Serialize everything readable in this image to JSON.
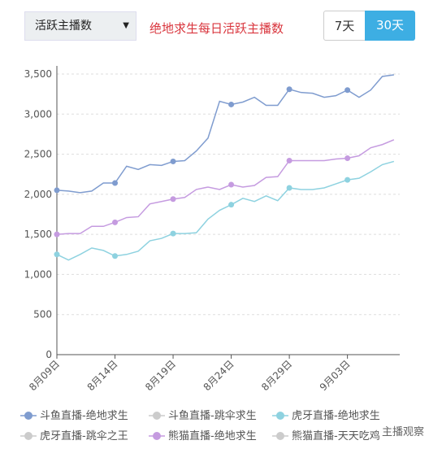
{
  "ui": {
    "select": "活跃主播数",
    "range_buttons": [
      "7天",
      "30天"
    ],
    "watermark": "主播观察"
  },
  "chart_data": {
    "type": "line",
    "title": "绝地求生每日活跃主播数",
    "categories": [
      "8月09日",
      null,
      null,
      null,
      null,
      "8月14日",
      null,
      null,
      null,
      null,
      "8月19日",
      null,
      null,
      null,
      null,
      "8月24日",
      null,
      null,
      null,
      null,
      "8月29日",
      null,
      null,
      null,
      null,
      "9月03日",
      null,
      null,
      null,
      null
    ],
    "series": [
      {
        "name": "斗鱼直播-绝地求生",
        "color": "#7f9ccf",
        "values": [
          2050,
          2040,
          2020,
          2040,
          2140,
          2140,
          2350,
          2310,
          2370,
          2360,
          2410,
          2420,
          2540,
          2700,
          3160,
          3120,
          3150,
          3210,
          3110,
          3110,
          3310,
          3270,
          3260,
          3210,
          3230,
          3300,
          3210,
          3300,
          3470,
          3490
        ]
      },
      {
        "name": "斗鱼直播-跳伞求生",
        "color": "#cccccc",
        "visible": false
      },
      {
        "name": "虎牙直播-绝地求生",
        "color": "#8ed2e0",
        "values": [
          1250,
          1180,
          1250,
          1330,
          1300,
          1230,
          1250,
          1290,
          1420,
          1450,
          1510,
          1510,
          1520,
          1690,
          1800,
          1870,
          1950,
          1910,
          1980,
          1920,
          2080,
          2060,
          2060,
          2080,
          2130,
          2180,
          2200,
          2280,
          2370,
          2410
        ]
      },
      {
        "name": "虎牙直播-跳伞之王",
        "color": "#cccccc",
        "visible": false
      },
      {
        "name": "熊猫直播-绝地求生",
        "color": "#c59be0",
        "values": [
          1500,
          1510,
          1510,
          1600,
          1600,
          1650,
          1710,
          1720,
          1880,
          1910,
          1940,
          1960,
          2060,
          2090,
          2060,
          2120,
          2090,
          2110,
          2210,
          2220,
          2420,
          2420,
          2420,
          2420,
          2440,
          2450,
          2480,
          2580,
          2620,
          2680
        ]
      },
      {
        "name": "熊猫直播-天天吃鸡",
        "color": "#cccccc",
        "visible": false
      }
    ],
    "ylim": [
      0,
      3500
    ],
    "yticks": [
      0,
      500,
      {
        "value": 1000,
        "label": "1,000"
      },
      {
        "value": 1500,
        "label": "1,500"
      },
      {
        "value": 2000,
        "label": "2,000"
      },
      {
        "value": 2500,
        "label": "2,500"
      },
      {
        "value": 3000,
        "label": "3,000"
      },
      {
        "value": 3500,
        "label": "3,500"
      }
    ],
    "grid": true
  }
}
